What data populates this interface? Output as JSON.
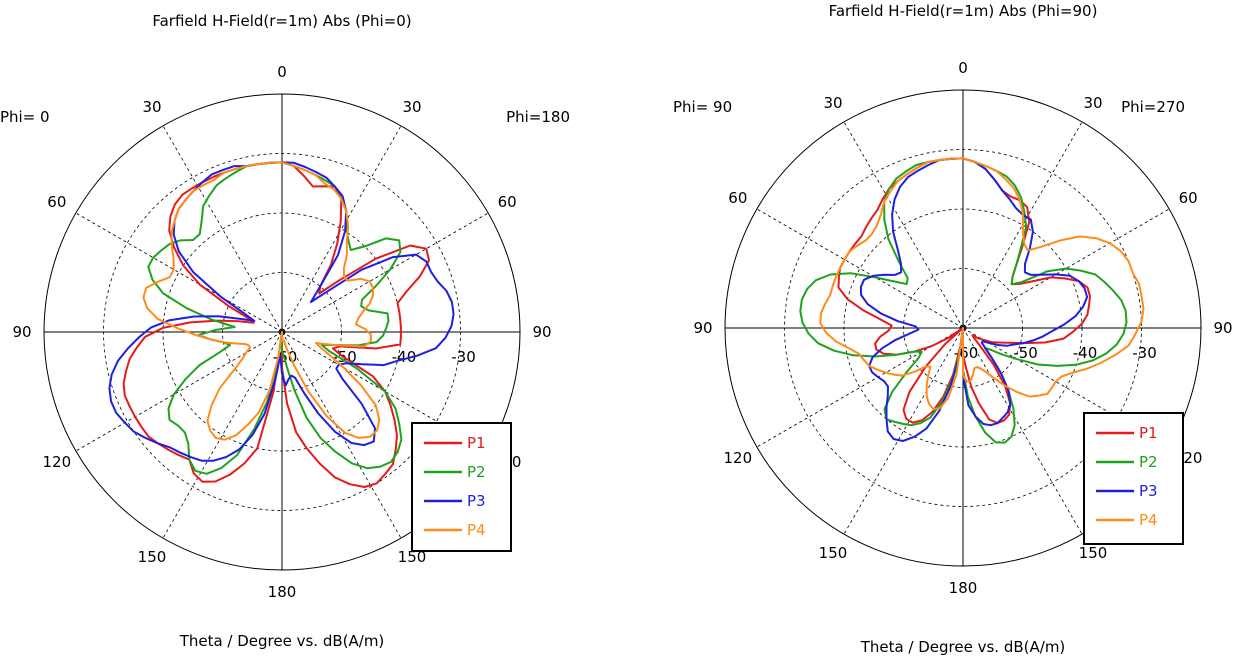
{
  "chart_data": [
    {
      "type": "polar",
      "title": "Farfield H-Field(r=1m) Abs (Phi=0)",
      "xlabel": "Theta / Degree vs. dB(A/m)",
      "left_label": "Phi=  0",
      "right_label": "Phi=180",
      "angle_ticks": [
        {
          "label": "0",
          "deg": 0
        },
        {
          "label": "30",
          "deg": 30
        },
        {
          "label": "60",
          "deg": 60
        },
        {
          "label": "90",
          "deg": 90
        },
        {
          "label": "120",
          "deg": 120
        },
        {
          "label": "150",
          "deg": 150
        },
        {
          "label": "180",
          "deg": 180
        },
        {
          "label": "150",
          "deg": 210
        },
        {
          "label": "120",
          "deg": 240
        },
        {
          "label": "90",
          "deg": 270
        },
        {
          "label": "60",
          "deg": 300
        },
        {
          "label": "30",
          "deg": 330
        }
      ],
      "radial_ticks": [
        "-60",
        "-50",
        "-40",
        "-30"
      ],
      "rlim": [
        -60,
        -20
      ],
      "grid": true,
      "legend_position": "bottom-right",
      "series": [
        {
          "name": "P1",
          "color": "#e41a1c",
          "values": [
            -31.5,
            -32,
            -33.5,
            -35,
            -34.5,
            -34,
            -35.5,
            -39,
            -42.5,
            -46,
            -50,
            -51,
            -47,
            -40,
            -34,
            -32,
            -32.5,
            -35,
            -38,
            -40,
            -40,
            -40,
            -40,
            -40,
            -40,
            -44,
            -50,
            -51,
            -49,
            -43,
            -40,
            -38,
            -36,
            -34,
            -32.5,
            -31,
            -30.5,
            -30,
            -30.5,
            -32,
            -34,
            -37,
            -40,
            -43,
            -48,
            -54,
            -60,
            -50,
            -40,
            -37,
            -34.5,
            -32.5,
            -31.5,
            -32,
            -33.5,
            -33,
            -32.5,
            -32,
            -31.5,
            -31.5,
            -31.5,
            -31.5,
            -31.5,
            -32,
            -33,
            -34,
            -35.5,
            -37,
            -40,
            -44.5,
            -49,
            -52.5,
            -55,
            -54,
            -50,
            -44,
            -40,
            -37,
            -34.5,
            -33,
            -32,
            -31.5,
            -31.5,
            -31.5,
            -31.5,
            -31.5,
            -31.5,
            -31.5,
            -31.5,
            -31.5
          ]
        },
        {
          "name": "P2",
          "color": "#1fa31f",
          "values": [
            -31.5,
            -32,
            -32.5,
            -33,
            -33.5,
            -34,
            -35,
            -37,
            -39.5,
            -41,
            -42,
            -40,
            -36.5,
            -35,
            -36,
            -39,
            -42.5,
            -45.5,
            -46,
            -45,
            -42,
            -42,
            -42.5,
            -43,
            -44,
            -47,
            -51,
            -53,
            -51.5,
            -46,
            -40,
            -37,
            -35,
            -33,
            -32,
            -31.5,
            -32,
            -33,
            -35,
            -38,
            -41,
            -45,
            -50,
            -54,
            -56,
            -57,
            -60,
            -55,
            -48,
            -43,
            -38,
            -35,
            -33,
            -32.5,
            -33.5,
            -35.5,
            -36.5,
            -36.5,
            -36,
            -37,
            -39,
            -42,
            -45,
            -49,
            -51,
            -50,
            -48,
            -46,
            -49,
            -52,
            -48,
            -43.5,
            -39,
            -36.5,
            -35,
            -35,
            -35.5,
            -36,
            -37,
            -38.5,
            -38.5,
            -37,
            -35,
            -34,
            -33,
            -32.5,
            -32,
            -31.5,
            -31.5,
            -31.5
          ]
        },
        {
          "name": "P3",
          "color": "#1f1fe0",
          "values": [
            -31.5,
            -31.5,
            -32,
            -32.5,
            -33,
            -34,
            -35,
            -37,
            -40,
            -44,
            -50,
            -53,
            -50,
            -43,
            -37.5,
            -34,
            -33,
            -33,
            -32.5,
            -31.5,
            -31,
            -31,
            -31.5,
            -32.5,
            -34,
            -37,
            -40,
            -42,
            -45.5,
            -48,
            -49,
            -49,
            -47,
            -42,
            -37.5,
            -36,
            -36.5,
            -38,
            -41,
            -45,
            -49,
            -52,
            -52.5,
            -52,
            -51,
            -53,
            -56,
            -52,
            -46,
            -42,
            -39,
            -37,
            -35.5,
            -34.5,
            -34,
            -33.5,
            -33,
            -32,
            -31,
            -30,
            -29.5,
            -29,
            -29,
            -29.5,
            -30.5,
            -32,
            -34,
            -36,
            -38,
            -41,
            -45,
            -49,
            -53,
            -55,
            -53,
            -48,
            -42,
            -38,
            -35.5,
            -34,
            -33,
            -32.5,
            -32,
            -31.5,
            -31,
            -31,
            -31,
            -31.5,
            -31.5,
            -31.5
          ]
        },
        {
          "name": "P4",
          "color": "#ff8c1a",
          "values": [
            -31.5,
            -32,
            -32.5,
            -33,
            -34,
            -34.5,
            -35.5,
            -37,
            -39,
            -41.5,
            -43,
            -45,
            -46,
            -46,
            -44,
            -43,
            -43,
            -43.5,
            -44.5,
            -46,
            -47,
            -47.5,
            -46,
            -45,
            -45,
            -46,
            -51,
            -54,
            -53,
            -51,
            -48,
            -44,
            -40,
            -38,
            -37,
            -37,
            -38,
            -40,
            -44,
            -49,
            -54,
            -57,
            -58.5,
            -58.5,
            -59,
            -58.5,
            -60,
            -56,
            -50,
            -46,
            -43.5,
            -41,
            -39.5,
            -39,
            -39.5,
            -40.5,
            -43,
            -46,
            -50,
            -52,
            -53,
            -54,
            -54,
            -53.5,
            -52,
            -50,
            -48,
            -45.5,
            -42.5,
            -39,
            -37,
            -36,
            -36,
            -37.5,
            -39,
            -39,
            -38,
            -36.5,
            -35,
            -34,
            -33,
            -32.5,
            -32,
            -32,
            -32,
            -31.5,
            -31.5,
            -31.5,
            -31.5,
            -31.5
          ]
        }
      ]
    },
    {
      "type": "polar",
      "title": "Farfield H-Field(r=1m) Abs (Phi=90)",
      "xlabel": "Theta / Degree vs. dB(A/m)",
      "left_label": "Phi= 90",
      "right_label": "Phi=270",
      "angle_ticks": [
        {
          "label": "0",
          "deg": 0
        },
        {
          "label": "30",
          "deg": 30
        },
        {
          "label": "60",
          "deg": 60
        },
        {
          "label": "90",
          "deg": 90
        },
        {
          "label": "120",
          "deg": 120
        },
        {
          "label": "150",
          "deg": 150
        },
        {
          "label": "180",
          "deg": 180
        },
        {
          "label": "150",
          "deg": 210
        },
        {
          "label": "120",
          "deg": 240
        },
        {
          "label": "90",
          "deg": 270
        },
        {
          "label": "60",
          "deg": 300
        },
        {
          "label": "30",
          "deg": 330
        }
      ],
      "radial_ticks": [
        "-60",
        "-50",
        "-40",
        "-30"
      ],
      "rlim": [
        -60,
        -20
      ],
      "grid": true,
      "legend_position": "bottom-right",
      "series": [
        {
          "name": "P1",
          "color": "#e41a1c",
          "values": [
            -31.5,
            -32,
            -33,
            -34.5,
            -36,
            -36.5,
            -36.5,
            -37,
            -39,
            -43,
            -46,
            -48,
            -49,
            -48,
            -46,
            -43,
            -41,
            -39,
            -38,
            -38,
            -38.5,
            -39,
            -40,
            -41.5,
            -43,
            -46,
            -49.5,
            -52,
            -53.5,
            -54.5,
            -56,
            -57,
            -58,
            -57.5,
            -56,
            -52,
            -48,
            -45,
            -43.5,
            -43,
            -43,
            -44,
            -47,
            -50,
            -53.5,
            -55.5,
            -60,
            -57,
            -52,
            -48,
            -45,
            -43,
            -42,
            -42,
            -43,
            -46,
            -51,
            -56,
            -60,
            -57,
            -54,
            -51,
            -48,
            -46,
            -45,
            -45,
            -46,
            -47.5,
            -48,
            -46,
            -43,
            -40,
            -38,
            -37.5,
            -37,
            -37,
            -37,
            -37,
            -37,
            -36.5,
            -36,
            -35.5,
            -34.5,
            -33.5,
            -33,
            -32.5,
            -32,
            -31.5,
            -31.5,
            -31.5
          ]
        },
        {
          "name": "P2",
          "color": "#1fa31f",
          "values": [
            -31.5,
            -32,
            -32.5,
            -33,
            -33.5,
            -34.5,
            -36,
            -38,
            -40,
            -43.5,
            -46,
            -48,
            -49,
            -47.5,
            -43,
            -40,
            -38,
            -36,
            -35,
            -34,
            -33,
            -32.5,
            -32.5,
            -33,
            -34,
            -35.5,
            -37.5,
            -40,
            -43,
            -46,
            -49.5,
            -52,
            -54,
            -55,
            -53,
            -50,
            -47,
            -44,
            -41.5,
            -40,
            -39.5,
            -40,
            -42,
            -45,
            -48.5,
            -53,
            -60,
            -56,
            -51,
            -47,
            -44,
            -42.5,
            -41.5,
            -41,
            -40.5,
            -40,
            -41,
            -44,
            -48,
            -51,
            -52,
            -51,
            -48,
            -44.5,
            -41,
            -38,
            -35.5,
            -34,
            -33,
            -32.5,
            -32.5,
            -33,
            -34,
            -36,
            -39,
            -43,
            -46,
            -48,
            -47.5,
            -44.5,
            -40.5,
            -37.5,
            -35,
            -33.5,
            -32.5,
            -32,
            -31.5,
            -31.5,
            -31.5,
            -31.5
          ]
        },
        {
          "name": "P3",
          "color": "#1f1fe0",
          "values": [
            -31.5,
            -32,
            -33,
            -34.5,
            -36,
            -37,
            -38,
            -38.5,
            -38.5,
            -40,
            -42.5,
            -45,
            -46,
            -45.5,
            -44,
            -42,
            -40,
            -39,
            -38.5,
            -38.5,
            -39.5,
            -41,
            -43,
            -45,
            -46.5,
            -48,
            -49.5,
            -51,
            -52,
            -53.5,
            -55,
            -56,
            -56,
            -55,
            -53,
            -50,
            -47,
            -45,
            -44,
            -43.5,
            -43,
            -43,
            -43.5,
            -45,
            -47,
            -52,
            -60,
            -55,
            -50,
            -45.5,
            -42,
            -40,
            -38.5,
            -38,
            -38.5,
            -40,
            -41.5,
            -43,
            -44,
            -44,
            -43.5,
            -43,
            -43,
            -44,
            -46,
            -48.5,
            -51,
            -52.5,
            -52,
            -49,
            -46,
            -43.5,
            -42,
            -41.5,
            -41.5,
            -42.5,
            -44,
            -45.5,
            -46,
            -45,
            -43,
            -40,
            -37.5,
            -35.5,
            -34,
            -33,
            -32.5,
            -32,
            -31.5,
            -31.5
          ]
        },
        {
          "name": "P4",
          "color": "#ff8c1a",
          "values": [
            -31.5,
            -32,
            -32.5,
            -33,
            -34,
            -35,
            -36.5,
            -38.5,
            -41,
            -42.5,
            -43,
            -41,
            -38,
            -35,
            -33,
            -31.5,
            -30.5,
            -30,
            -30,
            -29.5,
            -29.5,
            -29.5,
            -30,
            -31,
            -32,
            -34,
            -36,
            -38,
            -40,
            -41.5,
            -42,
            -42,
            -42,
            -43,
            -44,
            -46,
            -48,
            -50,
            -51.5,
            -52.5,
            -53,
            -53,
            -52,
            -51,
            -51,
            -52,
            -60,
            -52,
            -48,
            -46,
            -45.5,
            -46,
            -47,
            -48.5,
            -50,
            -51.5,
            -51,
            -49,
            -47,
            -46,
            -45,
            -44,
            -43,
            -42.5,
            -42,
            -40.5,
            -38.5,
            -37,
            -36,
            -36,
            -36.5,
            -37,
            -37,
            -37,
            -37,
            -37,
            -37,
            -37.5,
            -38,
            -38,
            -37.5,
            -36.5,
            -35,
            -34,
            -33,
            -32.5,
            -32,
            -31.5,
            -31.5,
            -31.5
          ]
        }
      ]
    }
  ]
}
